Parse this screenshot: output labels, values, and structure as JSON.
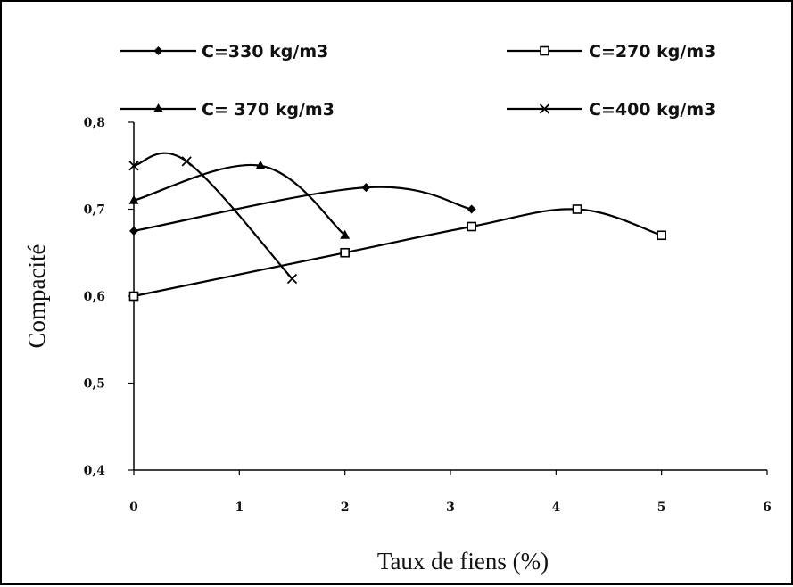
{
  "chart_data": {
    "type": "line",
    "title": "",
    "xlabel": "Taux de fiens (%)",
    "ylabel": "Compacité",
    "xlim": [
      0,
      6
    ],
    "ylim": [
      0.4,
      0.8
    ],
    "x_ticks": [
      "0",
      "1",
      "2",
      "3",
      "4",
      "5",
      "6"
    ],
    "y_ticks": [
      "0,4",
      "0,5",
      "0,6",
      "0,7",
      "0,8"
    ],
    "grid": false,
    "legend_position": "top",
    "series": [
      {
        "name": "C=330 kg/m3",
        "marker": "diamond",
        "color": "#000000",
        "x": [
          0,
          2.2,
          3.2
        ],
        "y": [
          0.675,
          0.725,
          0.7
        ]
      },
      {
        "name": "C=270 kg/m3",
        "marker": "open-square",
        "color": "#000000",
        "x": [
          0,
          2,
          3.2,
          4.2,
          5
        ],
        "y": [
          0.6,
          0.65,
          0.68,
          0.7,
          0.67
        ]
      },
      {
        "name": "C= 370 kg/m3",
        "marker": "triangle",
        "color": "#000000",
        "x": [
          0,
          1.2,
          2
        ],
        "y": [
          0.71,
          0.75,
          0.67
        ]
      },
      {
        "name": "C=400 kg/m3",
        "marker": "x",
        "color": "#000000",
        "x": [
          0,
          0.5,
          1.5
        ],
        "y": [
          0.75,
          0.755,
          0.62
        ]
      }
    ]
  }
}
